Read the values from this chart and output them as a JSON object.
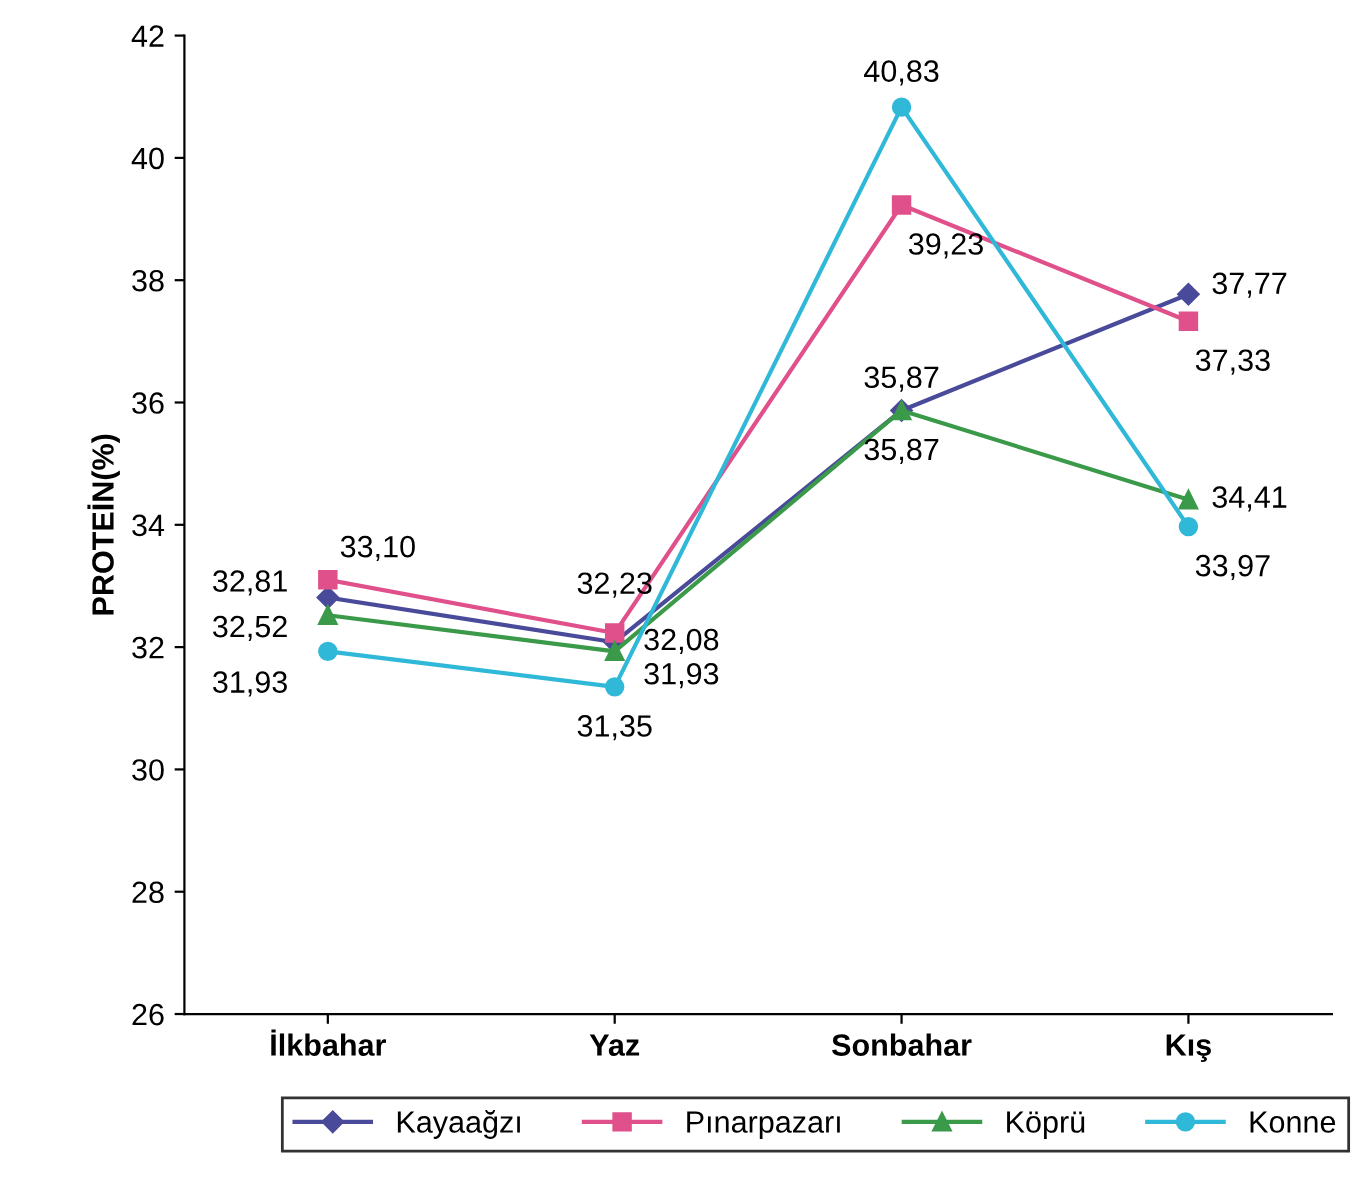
{
  "chart_data": {
    "type": "line",
    "ylabel": "PROTEİN(%)",
    "categories": [
      "İlkbahar",
      "Yaz",
      "Sonbahar",
      "Kış"
    ],
    "series": [
      {
        "name": "Kayaağzı",
        "color": "#4a4a9a",
        "marker": "diamond",
        "values": [
          32.81,
          32.08,
          35.87,
          37.77
        ],
        "value_labels": [
          "32,81",
          "32,08",
          "35,87",
          "37,77"
        ]
      },
      {
        "name": "Pınarpazarı",
        "color": "#e0508a",
        "marker": "square",
        "values": [
          33.1,
          32.23,
          39.23,
          37.33
        ],
        "value_labels": [
          "33,10",
          "32,23",
          "39,23",
          "37,33"
        ]
      },
      {
        "name": "Köprü",
        "color": "#3a9a4a",
        "marker": "triangle",
        "values": [
          32.52,
          31.93,
          35.87,
          34.41
        ],
        "value_labels": [
          "32,52",
          "31,93",
          "35,87",
          "34,41"
        ]
      },
      {
        "name": "Konne",
        "color": "#30b8d8",
        "marker": "circle",
        "values": [
          31.93,
          31.35,
          40.83,
          33.97
        ],
        "value_labels": [
          "31,93",
          "31,35",
          "40,83",
          "33,97"
        ]
      }
    ],
    "ylim": [
      26,
      42
    ],
    "yticks": [
      26,
      28,
      30,
      32,
      34,
      36,
      38,
      40,
      42
    ],
    "legend": "bottom",
    "grid": false
  }
}
